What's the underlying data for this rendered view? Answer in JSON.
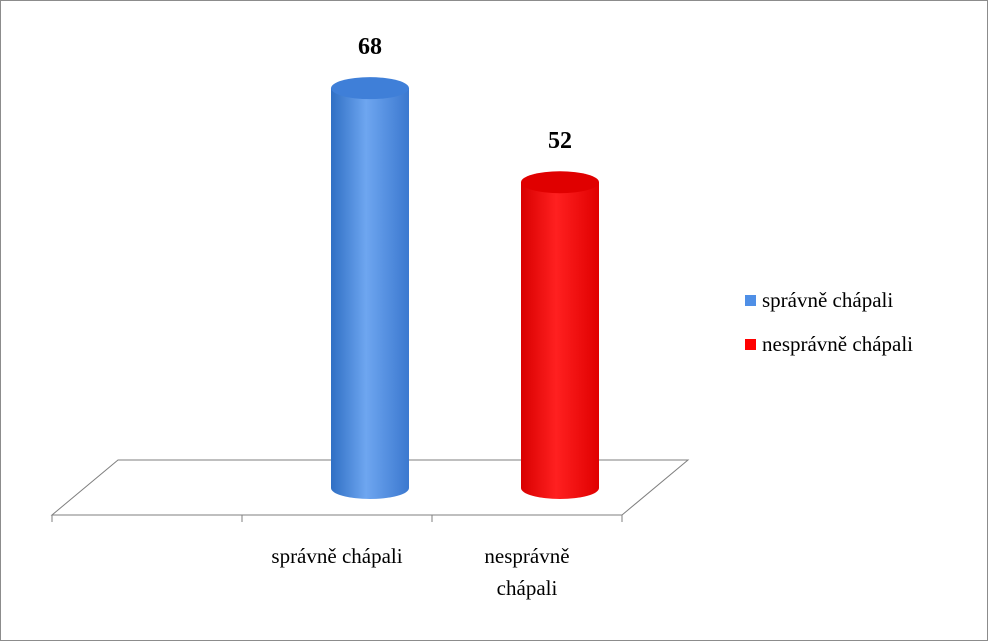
{
  "chart_data": {
    "type": "bar",
    "categories": [
      "správně chápali",
      "nesprávně chápali"
    ],
    "category_label_lines": [
      [
        "správně chápali"
      ],
      [
        "nesprávně",
        "chápali"
      ]
    ],
    "series": [
      {
        "name": "správně chápali",
        "values": [
          68,
          null
        ],
        "color": "#4f8fe6"
      },
      {
        "name": "nesprávně chápali",
        "values": [
          null,
          52
        ],
        "color": "#ff0000"
      }
    ],
    "values": [
      68,
      52
    ],
    "data_labels": [
      "68",
      "52"
    ],
    "colors": [
      "#4f8fe6",
      "#ff0000"
    ],
    "style": "3d-cylinder",
    "legend_position": "right",
    "grid": false,
    "ylim": [
      0,
      68
    ]
  }
}
